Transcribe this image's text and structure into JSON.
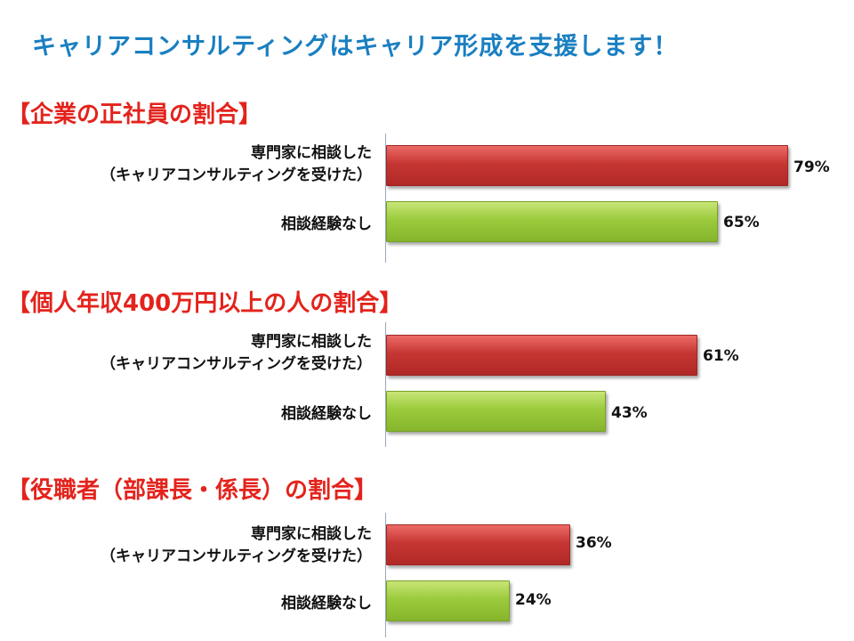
{
  "title": "キャリアコンサルティングはキャリア形成を支援します！",
  "colors": {
    "title": "#1a7fc1",
    "section_title": "#e3231c",
    "consulted": "#c63633",
    "not_consulted": "#9bcb3c"
  },
  "chart_data": [
    {
      "type": "bar",
      "orientation": "horizontal",
      "title": "【企業の正社員の割合】",
      "categories": [
        [
          "専門家に相談した",
          "（キャリアコンサルティングを受けた）"
        ],
        [
          "相談経験なし"
        ]
      ],
      "values": [
        79,
        65
      ],
      "value_labels": [
        "79%",
        "65%"
      ],
      "xlim": [
        0,
        100
      ],
      "grid": false
    },
    {
      "type": "bar",
      "orientation": "horizontal",
      "title": "【個人年収400万円以上の人の割合】",
      "categories": [
        [
          "専門家に相談した",
          "（キャリアコンサルティングを受けた）"
        ],
        [
          "相談経験なし"
        ]
      ],
      "values": [
        61,
        43
      ],
      "value_labels": [
        "61%",
        "43%"
      ],
      "xlim": [
        0,
        100
      ],
      "grid": false
    },
    {
      "type": "bar",
      "orientation": "horizontal",
      "title": "【役職者（部課長・係長）の割合】",
      "categories": [
        [
          "専門家に相談した",
          "（キャリアコンサルティングを受けた）"
        ],
        [
          "相談経験なし"
        ]
      ],
      "values": [
        36,
        24
      ],
      "value_labels": [
        "36%",
        "24%"
      ],
      "xlim": [
        0,
        100
      ],
      "grid": false
    }
  ]
}
